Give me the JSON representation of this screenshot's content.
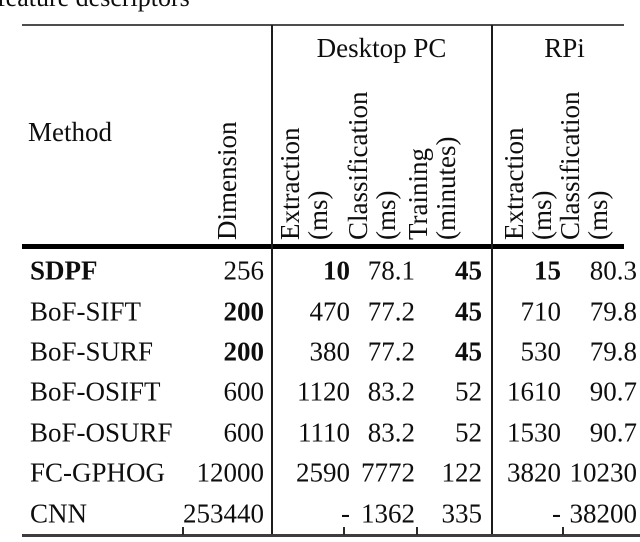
{
  "caption_fragment": "feature descriptors",
  "table": {
    "group_headers": {
      "desktop": "Desktop PC",
      "rpi": "RPi"
    },
    "method_header": "Method",
    "dimension_header": "Dimension",
    "sub_headers": {
      "desktop_extraction": {
        "line1": "Extraction",
        "line2": "(ms)"
      },
      "desktop_classification": {
        "line1": "Classification",
        "line2": "(ms)"
      },
      "desktop_training": {
        "line1": "Training",
        "line2": "(minutes)"
      },
      "rpi_extraction": {
        "line1": "Extraction",
        "line2": "(ms)"
      },
      "rpi_classification": {
        "line1": "Classification",
        "line2": "(ms)"
      }
    },
    "rows": [
      {
        "method": "SDPF",
        "dimension": "256",
        "d_ext": "10",
        "d_class": "78.1",
        "d_train": "45",
        "r_ext": "15",
        "r_class": "80.3",
        "bold_cells": [
          "method",
          "d_ext",
          "d_train",
          "r_ext"
        ]
      },
      {
        "method": "BoF-SIFT",
        "dimension": "200",
        "d_ext": "470",
        "d_class": "77.2",
        "d_train": "45",
        "r_ext": "710",
        "r_class": "79.8",
        "bold_cells": [
          "dimension",
          "d_train"
        ]
      },
      {
        "method": "BoF-SURF",
        "dimension": "200",
        "d_ext": "380",
        "d_class": "77.2",
        "d_train": "45",
        "r_ext": "530",
        "r_class": "79.8",
        "bold_cells": [
          "dimension",
          "d_train"
        ]
      },
      {
        "method": "BoF-OSIFT",
        "dimension": "600",
        "d_ext": "1120",
        "d_class": "83.2",
        "d_train": "52",
        "r_ext": "1610",
        "r_class": "90.7",
        "bold_cells": []
      },
      {
        "method": "BoF-OSURF",
        "dimension": "600",
        "d_ext": "1110",
        "d_class": "83.2",
        "d_train": "52",
        "r_ext": "1530",
        "r_class": "90.7",
        "bold_cells": []
      },
      {
        "method": "FC-GPHOG",
        "dimension": "12000",
        "d_ext": "2590",
        "d_class": "7772",
        "d_train": "122",
        "r_ext": "3820",
        "r_class": "10230",
        "bold_cells": []
      },
      {
        "method": "CNN",
        "dimension": "253440",
        "d_ext": "-",
        "d_class": "1362",
        "d_train": "335",
        "r_ext": "-",
        "r_class": "38200",
        "bold_cells": []
      }
    ]
  }
}
